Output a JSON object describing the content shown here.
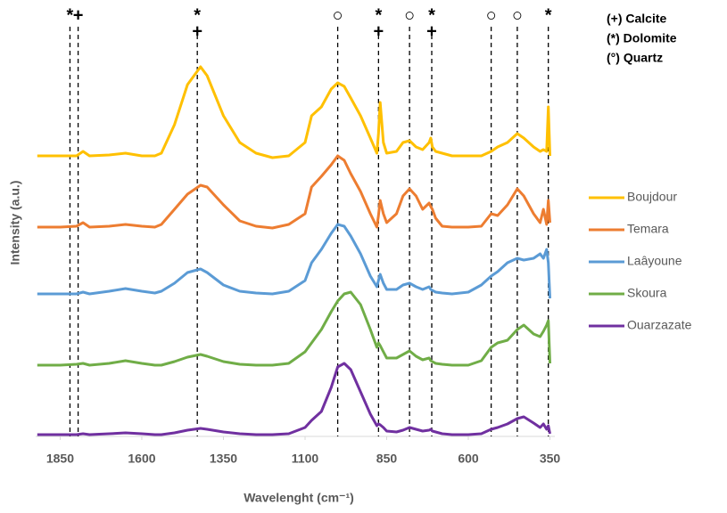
{
  "chart_data": {
    "type": "line",
    "x_label": "Wavelenght (cm⁻¹)",
    "y_label": "Intensity (a.u.)",
    "xlim": [
      1925,
      335
    ],
    "xticks": [
      1850,
      1600,
      1350,
      1100,
      850,
      600,
      350
    ],
    "ylim": [
      0,
      480
    ],
    "x": [
      1920,
      1850,
      1800,
      1780,
      1760,
      1700,
      1650,
      1600,
      1560,
      1540,
      1500,
      1460,
      1420,
      1400,
      1350,
      1300,
      1250,
      1200,
      1150,
      1100,
      1080,
      1050,
      1020,
      1000,
      980,
      960,
      930,
      900,
      880,
      875,
      870,
      860,
      850,
      820,
      800,
      780,
      760,
      740,
      720,
      715,
      710,
      700,
      680,
      650,
      600,
      560,
      530,
      510,
      480,
      450,
      430,
      400,
      380,
      370,
      360,
      355,
      350
    ],
    "series": [
      {
        "name": "Boujdour",
        "color": "#ffc000",
        "values": [
          315,
          315,
          315,
          320,
          315,
          316,
          318,
          315,
          315,
          318,
          350,
          395,
          415,
          405,
          360,
          330,
          318,
          313,
          315,
          330,
          360,
          370,
          390,
          397,
          393,
          380,
          360,
          335,
          318,
          340,
          375,
          330,
          318,
          320,
          330,
          332,
          325,
          322,
          330,
          335,
          325,
          320,
          318,
          315,
          315,
          315,
          320,
          325,
          330,
          340,
          335,
          325,
          320,
          322,
          320,
          370,
          315
        ]
      },
      {
        "name": "Temara",
        "color": "#ed7d31",
        "values": [
          235,
          235,
          236,
          240,
          235,
          236,
          238,
          236,
          235,
          238,
          255,
          272,
          282,
          280,
          260,
          242,
          236,
          234,
          238,
          250,
          280,
          292,
          305,
          315,
          310,
          295,
          275,
          250,
          235,
          248,
          265,
          250,
          240,
          250,
          270,
          278,
          270,
          255,
          262,
          258,
          255,
          245,
          236,
          235,
          235,
          236,
          250,
          248,
          260,
          278,
          270,
          250,
          240,
          255,
          238,
          265,
          240
        ]
      },
      {
        "name": "Laâyoune",
        "color": "#5b9bd5",
        "values": [
          160,
          160,
          160,
          162,
          160,
          163,
          166,
          163,
          161,
          163,
          172,
          184,
          188,
          184,
          170,
          163,
          161,
          160,
          163,
          175,
          195,
          210,
          228,
          238,
          236,
          225,
          205,
          180,
          168,
          175,
          182,
          172,
          165,
          165,
          170,
          172,
          168,
          165,
          168,
          165,
          164,
          162,
          161,
          160,
          162,
          170,
          180,
          185,
          195,
          200,
          198,
          200,
          205,
          200,
          210,
          195,
          155
        ]
      },
      {
        "name": "Skoura",
        "color": "#70ad47",
        "values": [
          80,
          80,
          81,
          82,
          80,
          82,
          85,
          82,
          80,
          80,
          84,
          89,
          92,
          90,
          84,
          81,
          80,
          80,
          82,
          95,
          105,
          120,
          140,
          152,
          160,
          162,
          148,
          120,
          100,
          105,
          102,
          95,
          88,
          88,
          92,
          96,
          90,
          86,
          88,
          85,
          84,
          82,
          81,
          80,
          80,
          85,
          100,
          105,
          108,
          120,
          125,
          115,
          112,
          118,
          125,
          130,
          82
        ]
      },
      {
        "name": "Ouarzazate",
        "color": "#7030a0",
        "values": [
          2,
          2,
          2,
          3,
          2,
          3,
          4,
          3,
          2,
          2,
          4,
          7,
          9,
          8,
          5,
          3,
          2,
          2,
          3,
          10,
          18,
          28,
          55,
          78,
          82,
          75,
          50,
          25,
          12,
          14,
          13,
          10,
          6,
          5,
          7,
          10,
          8,
          6,
          7,
          8,
          6,
          5,
          3,
          2,
          2,
          3,
          8,
          10,
          14,
          20,
          22,
          15,
          10,
          14,
          8,
          12,
          3
        ]
      }
    ],
    "annotations": [
      {
        "x": 1820,
        "labels": [
          "*"
        ]
      },
      {
        "x": 1795,
        "labels": [
          "+"
        ]
      },
      {
        "x": 1430,
        "labels": [
          "*",
          "+"
        ]
      },
      {
        "x": 1000,
        "labels": [
          "○"
        ]
      },
      {
        "x": 875,
        "labels": [
          "*",
          "+"
        ]
      },
      {
        "x": 780,
        "labels": [
          "○"
        ]
      },
      {
        "x": 712,
        "labels": [
          "*",
          "+"
        ]
      },
      {
        "x": 530,
        "labels": [
          "○"
        ]
      },
      {
        "x": 450,
        "labels": [
          "○"
        ]
      },
      {
        "x": 355,
        "labels": [
          "*"
        ]
      }
    ],
    "key": [
      "(+) Calcite",
      "(*) Dolomite",
      "(°) Quartz"
    ]
  }
}
